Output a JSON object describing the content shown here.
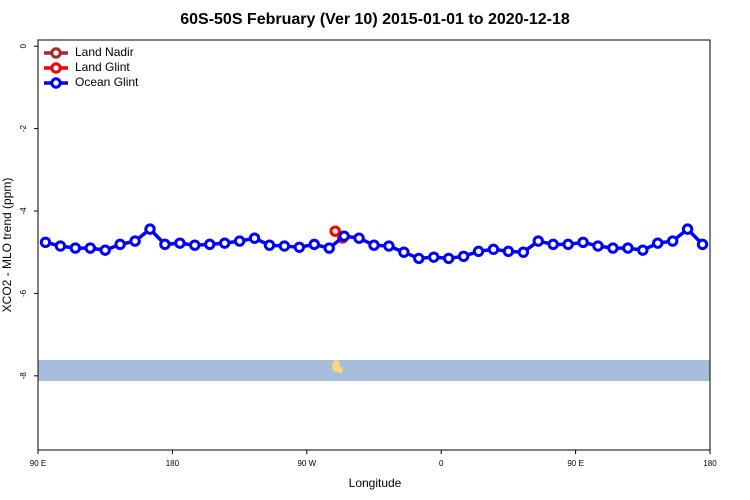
{
  "chart_data": {
    "type": "line",
    "title": "60S-50S February (Ver 10)   2015-01-01 to 2020-12-18",
    "x_label": "Longitude",
    "y_label": "XCO2 - MLO trend (ppm)",
    "xlim": [
      90,
      540
    ],
    "ylim": [
      -9.8,
      0.15
    ],
    "xticks": [
      {
        "value": 90,
        "label": "90 E"
      },
      180,
      {
        "value": 270,
        "label": "90 W"
      },
      {
        "value": 360,
        "label": "0"
      },
      {
        "value": 450,
        "label": "90 E"
      },
      {
        "value": 540,
        "label": "180"
      }
    ],
    "yticks": [
      0,
      -2,
      -4,
      -6,
      -8
    ],
    "legend": "top-left",
    "series": [
      {
        "name": "Land Nadir",
        "color": "#a52a2a",
        "x": [],
        "values": []
      },
      {
        "name": "Land Glint",
        "color": "#ff0000",
        "x": [
          289,
          294
        ],
        "values": [
          -4.49,
          -4.65
        ]
      },
      {
        "name": "Ocean Glint",
        "color": "#0000ff",
        "x": [
          95,
          105,
          115,
          125,
          135,
          145,
          155,
          165,
          175,
          185,
          195,
          205,
          215,
          225,
          235,
          245,
          255,
          265,
          275,
          285,
          295,
          305,
          315,
          325,
          335,
          345,
          355,
          365,
          375,
          385,
          395,
          405,
          415,
          425,
          435,
          445,
          455,
          465,
          475,
          485,
          495,
          505,
          515,
          525,
          535
        ],
        "values": [
          -4.76,
          -4.85,
          -4.9,
          -4.9,
          -4.95,
          -4.81,
          -4.73,
          -4.44,
          -4.81,
          -4.78,
          -4.83,
          -4.81,
          -4.78,
          -4.73,
          -4.66,
          -4.83,
          -4.85,
          -4.88,
          -4.81,
          -4.9,
          -4.61,
          -4.66,
          -4.83,
          -4.85,
          -5.0,
          -5.15,
          -5.12,
          -5.15,
          -5.1,
          -4.98,
          -4.93,
          -4.98,
          -5.0,
          -4.73,
          -4.81,
          -4.81,
          -4.76,
          -4.85,
          -4.9,
          -4.9,
          -4.95,
          -4.78,
          -4.73,
          -4.44,
          -4.81
        ]
      }
    ]
  }
}
